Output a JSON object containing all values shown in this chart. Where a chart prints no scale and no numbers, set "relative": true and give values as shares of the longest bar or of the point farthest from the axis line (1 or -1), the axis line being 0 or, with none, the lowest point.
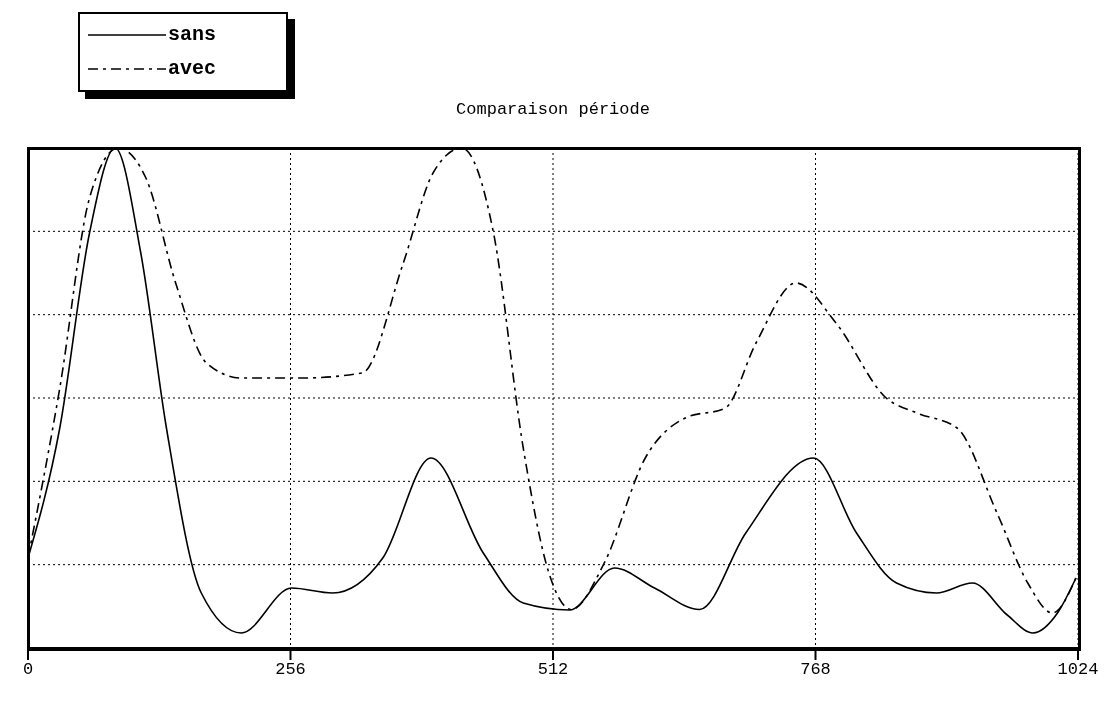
{
  "chart_data": {
    "type": "line",
    "title": "Comparaison période",
    "relative": true,
    "xlim": [
      0,
      1024
    ],
    "xticks": [
      0,
      256,
      512,
      768,
      1024
    ],
    "grid": true,
    "legend": "top left",
    "marker": "none",
    "series": [
      {
        "name": "sans",
        "color": "#000000",
        "line_style": "solid",
        "x": [
          0,
          31,
          60,
          85,
          110,
          135,
          169,
          208,
          257,
          297,
          346,
          393,
          444,
          483,
          528,
          572,
          611,
          655,
          700,
          766,
          808,
          847,
          886,
          921,
          955,
          980,
          1004,
          1022
        ],
        "values": [
          0.18,
          0.44,
          0.83,
          1.0,
          0.79,
          0.44,
          0.11,
          0.03,
          0.12,
          0.11,
          0.18,
          0.38,
          0.19,
          0.09,
          0.076,
          0.16,
          0.12,
          0.077,
          0.23,
          0.38,
          0.23,
          0.13,
          0.11,
          0.13,
          0.066,
          0.03,
          0.07,
          0.14
        ]
      },
      {
        "name": "avec",
        "color": "#000000",
        "line_style": "dashed",
        "x": [
          0,
          31,
          60,
          88,
          115,
          144,
          174,
          208,
          267,
          326,
          366,
          395,
          423,
          454,
          483,
          508,
          530,
          562,
          602,
          641,
          680,
          710,
          749,
          788,
          837,
          867,
          906,
          945,
          975,
          999,
          1022
        ],
        "values": [
          0.18,
          0.52,
          0.9,
          1.0,
          0.94,
          0.73,
          0.57,
          0.54,
          0.54,
          0.55,
          0.77,
          0.95,
          1.0,
          0.83,
          0.4,
          0.15,
          0.077,
          0.17,
          0.38,
          0.46,
          0.48,
          0.61,
          0.73,
          0.65,
          0.5,
          0.47,
          0.44,
          0.27,
          0.13,
          0.07,
          0.14
        ]
      }
    ]
  }
}
